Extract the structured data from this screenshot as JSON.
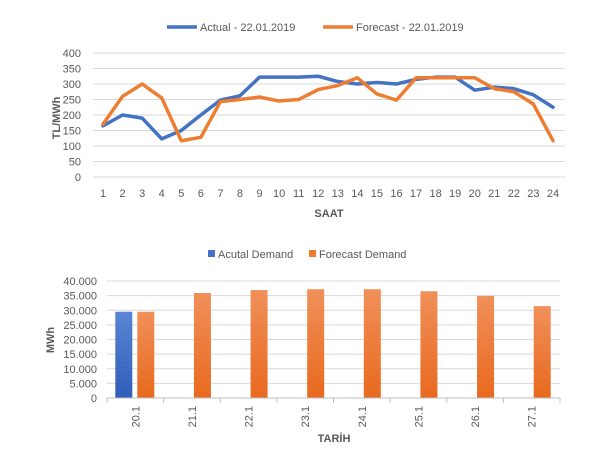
{
  "chart_data": [
    {
      "type": "line",
      "xlabel": "SAAT",
      "ylabel": "TL/MWh",
      "ylim": [
        0,
        400
      ],
      "yticks": [
        "0",
        "50",
        "100",
        "150",
        "200",
        "250",
        "300",
        "350",
        "400"
      ],
      "x": [
        1,
        2,
        3,
        4,
        5,
        6,
        7,
        8,
        9,
        10,
        11,
        12,
        13,
        14,
        15,
        16,
        17,
        18,
        19,
        20,
        21,
        22,
        23,
        24
      ],
      "grid": true,
      "legend": "top",
      "series": [
        {
          "name": "Actual - 22.01.2019",
          "color": "#4472c4",
          "values": [
            165,
            200,
            190,
            123,
            150,
            200,
            248,
            262,
            322,
            322,
            322,
            325,
            308,
            300,
            305,
            300,
            315,
            322,
            322,
            280,
            290,
            285,
            265,
            225
          ]
        },
        {
          "name": "Forecast - 22.01.2019",
          "color": "#ed7d31",
          "values": [
            170,
            260,
            300,
            255,
            117,
            128,
            243,
            250,
            258,
            245,
            250,
            282,
            295,
            320,
            268,
            248,
            320,
            320,
            320,
            320,
            285,
            275,
            235,
            117
          ]
        }
      ]
    },
    {
      "type": "bar",
      "xlabel": "TARİH",
      "ylabel": "MWh",
      "ylim": [
        0,
        40000
      ],
      "yticks": [
        "0",
        "5.000",
        "10.000",
        "15.000",
        "20.000",
        "25.000",
        "30.000",
        "35.000",
        "40.000"
      ],
      "categories": [
        "20.1",
        "21.1",
        "22.1",
        "23.1",
        "24.1",
        "25.1",
        "26.1",
        "27.1"
      ],
      "grid": true,
      "legend": "top",
      "series": [
        {
          "name": "Acutal Demand",
          "color": "#4472c4",
          "values": [
            29500,
            null,
            null,
            null,
            null,
            null,
            null,
            null
          ]
        },
        {
          "name": "Forecast Demand",
          "color": "#ed7d31",
          "values": [
            29500,
            35900,
            36900,
            37200,
            37200,
            36500,
            34900,
            31400
          ]
        }
      ]
    }
  ]
}
